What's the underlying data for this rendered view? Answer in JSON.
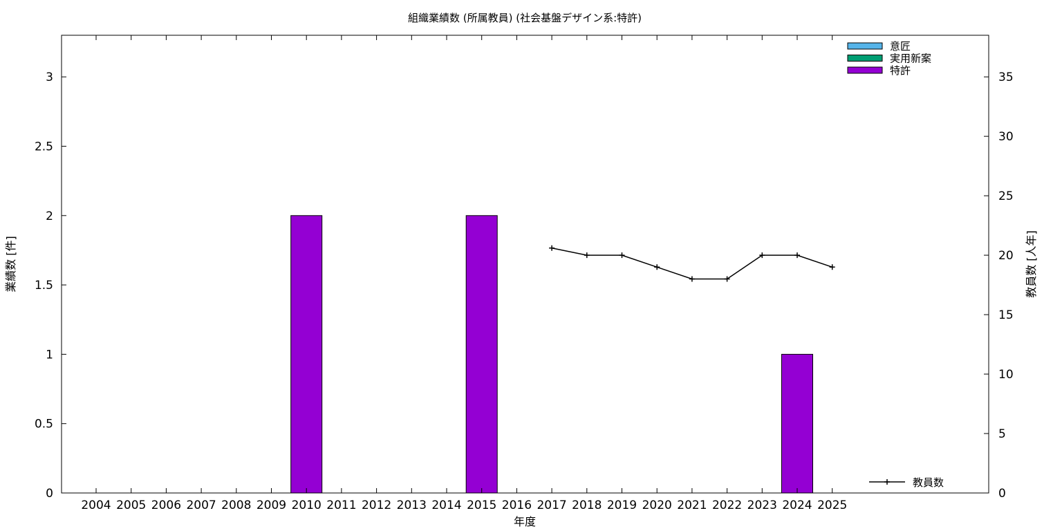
{
  "chart_data": {
    "type": "bar",
    "title": "組織業績数 (所属教員) (社会基盤デザイン系:特許)",
    "xlabel": "年度",
    "ylabel": "業績数 [件]",
    "y2label": "教員数 [人年]",
    "categories": [
      "2004",
      "2005",
      "2006",
      "2007",
      "2008",
      "2009",
      "2010",
      "2011",
      "2012",
      "2013",
      "2014",
      "2015",
      "2016",
      "2017",
      "2018",
      "2019",
      "2020",
      "2021",
      "2022",
      "2023",
      "2024",
      "2025"
    ],
    "ylim": [
      0,
      3.3
    ],
    "yticks": [
      "0",
      "0.5",
      "1",
      "1.5",
      "2",
      "2.5",
      "3"
    ],
    "y2lim": [
      0,
      38.5
    ],
    "y2ticks": [
      "0",
      "5",
      "10",
      "15",
      "20",
      "25",
      "30",
      "35"
    ],
    "grid": false,
    "legend_position": "top-right",
    "series": [
      {
        "name": "意匠",
        "type": "bar",
        "color": "#56b4e9",
        "values": [
          0,
          0,
          0,
          0,
          0,
          0,
          0,
          0,
          0,
          0,
          0,
          0,
          0,
          0,
          0,
          0,
          0,
          0,
          0,
          0,
          0,
          0
        ]
      },
      {
        "name": "実用新案",
        "type": "bar",
        "color": "#009e73",
        "values": [
          0,
          0,
          0,
          0,
          0,
          0,
          0,
          0,
          0,
          0,
          0,
          0,
          0,
          0,
          0,
          0,
          0,
          0,
          0,
          0,
          0,
          0
        ]
      },
      {
        "name": "特許",
        "type": "bar",
        "color": "#9400d3",
        "values": [
          0,
          0,
          0,
          0,
          0,
          0,
          2,
          0,
          0,
          0,
          0,
          2,
          0,
          0,
          0,
          0,
          0,
          0,
          0,
          0,
          1,
          0
        ]
      },
      {
        "name": "教員数",
        "type": "line",
        "axis": "right",
        "color": "#000000",
        "x": [
          "2017",
          "2018",
          "2019",
          "2020",
          "2021",
          "2022",
          "2023",
          "2024",
          "2025"
        ],
        "values": [
          20.6,
          20,
          20,
          19,
          18,
          18,
          20,
          20,
          19
        ]
      }
    ]
  }
}
